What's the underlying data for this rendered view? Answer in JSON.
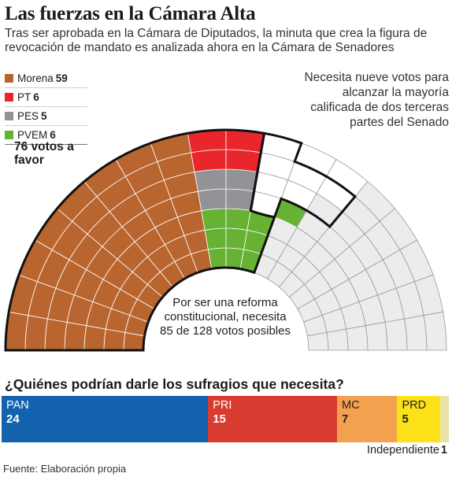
{
  "header": {
    "title": "Las fuerzas en la Cámara Alta",
    "subtitle": "Tras ser aprobada en la Cámara de Diputados, la minuta que crea la figura de revocación de mandato es analizada ahora en la Cámara de Senadores"
  },
  "legend": [
    {
      "name": "Morena",
      "value": "59",
      "color": "#b9652f"
    },
    {
      "name": "PT",
      "value": "6",
      "color": "#e8262b"
    },
    {
      "name": "PES",
      "value": "5",
      "color": "#929397"
    },
    {
      "name": "PVEM",
      "value": "6",
      "color": "#67b234"
    }
  ],
  "total_votes": "76 votos a favor",
  "note_right": "Necesita nueve votos para alcanzar la mayoría calificada de dos terceras partes del Senado",
  "note_center": "Por ser una reforma constitucional, necesita 85 de 128 votos posibles",
  "question": "¿Quiénes podrían darle los sufragios que necesita?",
  "source": "Fuente: Elaboración propia",
  "chart_data": [
    {
      "type": "hemicycle",
      "total_seats": 128,
      "series": [
        {
          "name": "Morena",
          "value": 59,
          "color": "#b9652f"
        },
        {
          "name": "PT",
          "value": 6,
          "color": "#e8262b"
        },
        {
          "name": "PES",
          "value": 5,
          "color": "#929397"
        },
        {
          "name": "PVEM",
          "value": 6,
          "color": "#67b234"
        }
      ],
      "needed_extra": 9,
      "target": 85,
      "others": {
        "value": 43,
        "color": "#ececec"
      }
    },
    {
      "type": "bar",
      "stacked": true,
      "series": [
        {
          "name": "PAN",
          "value": 24,
          "color": "#1262ad",
          "text_color": "#ffffff"
        },
        {
          "name": "PRI",
          "value": 15,
          "color": "#d83b2f",
          "text_color": "#ffffff"
        },
        {
          "name": "MC",
          "value": 7,
          "color": "#f4a14f",
          "text_color": "#222222"
        },
        {
          "name": "PRD",
          "value": 5,
          "color": "#fce118",
          "text_color": "#222222"
        },
        {
          "name": "Independiente",
          "value": 1,
          "color": "#e8e4a8",
          "text_color": "#222222"
        }
      ]
    }
  ]
}
